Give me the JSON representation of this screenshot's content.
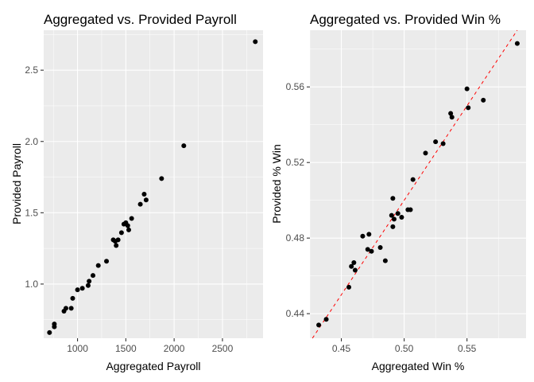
{
  "chart_data": [
    {
      "type": "scatter",
      "title": "Aggregated vs. Provided Payroll",
      "xlabel": "Aggregated Payroll",
      "ylabel": "Provided Payroll",
      "xlim": [
        650,
        2920
      ],
      "ylim": [
        0.62,
        2.78
      ],
      "xticks": [
        1000,
        1500,
        2000,
        2500
      ],
      "xtick_labels": [
        "1000",
        "1500",
        "2000",
        "2500"
      ],
      "yticks": [
        1.0,
        1.5,
        2.0,
        2.5
      ],
      "ytick_labels": [
        "1.0",
        "1.5",
        "2.0",
        "2.5"
      ],
      "grid": true,
      "background": "#ebebeb",
      "point_color": "#000000",
      "points": [
        {
          "x": 710,
          "y": 0.66
        },
        {
          "x": 760,
          "y": 0.7
        },
        {
          "x": 760,
          "y": 0.72
        },
        {
          "x": 860,
          "y": 0.81
        },
        {
          "x": 880,
          "y": 0.83
        },
        {
          "x": 935,
          "y": 0.83
        },
        {
          "x": 950,
          "y": 0.9
        },
        {
          "x": 1000,
          "y": 0.96
        },
        {
          "x": 1050,
          "y": 0.97
        },
        {
          "x": 1110,
          "y": 0.99
        },
        {
          "x": 1120,
          "y": 1.02
        },
        {
          "x": 1160,
          "y": 1.06
        },
        {
          "x": 1215,
          "y": 1.13
        },
        {
          "x": 1300,
          "y": 1.16
        },
        {
          "x": 1370,
          "y": 1.31
        },
        {
          "x": 1390,
          "y": 1.3
        },
        {
          "x": 1400,
          "y": 1.27
        },
        {
          "x": 1420,
          "y": 1.31
        },
        {
          "x": 1455,
          "y": 1.36
        },
        {
          "x": 1480,
          "y": 1.42
        },
        {
          "x": 1500,
          "y": 1.43
        },
        {
          "x": 1520,
          "y": 1.41
        },
        {
          "x": 1530,
          "y": 1.38
        },
        {
          "x": 1560,
          "y": 1.46
        },
        {
          "x": 1650,
          "y": 1.56
        },
        {
          "x": 1690,
          "y": 1.63
        },
        {
          "x": 1710,
          "y": 1.59
        },
        {
          "x": 1870,
          "y": 1.74
        },
        {
          "x": 2100,
          "y": 1.97
        },
        {
          "x": 2840,
          "y": 2.7
        }
      ]
    },
    {
      "type": "scatter",
      "title": "Aggregated vs. Provided Win %",
      "xlabel": "Aggregated Win %",
      "ylabel": "Provided % Win",
      "xlim": [
        0.425,
        0.597
      ],
      "ylim": [
        0.427,
        0.59
      ],
      "xticks": [
        0.45,
        0.5,
        0.55
      ],
      "xtick_labels": [
        "0.45",
        "0.50",
        "0.55"
      ],
      "yticks": [
        0.44,
        0.48,
        0.52,
        0.56
      ],
      "ytick_labels": [
        "0.44",
        "0.48",
        "0.52",
        "0.56"
      ],
      "grid": true,
      "background": "#ebebeb",
      "point_color": "#000000",
      "reference_line": {
        "slope": 1,
        "intercept": 0,
        "style": "dashed",
        "color": "#ff0000"
      },
      "points": [
        {
          "x": 0.432,
          "y": 0.434
        },
        {
          "x": 0.438,
          "y": 0.437
        },
        {
          "x": 0.456,
          "y": 0.454
        },
        {
          "x": 0.458,
          "y": 0.465
        },
        {
          "x": 0.46,
          "y": 0.467
        },
        {
          "x": 0.461,
          "y": 0.463
        },
        {
          "x": 0.467,
          "y": 0.481
        },
        {
          "x": 0.471,
          "y": 0.474
        },
        {
          "x": 0.472,
          "y": 0.482
        },
        {
          "x": 0.474,
          "y": 0.473
        },
        {
          "x": 0.481,
          "y": 0.475
        },
        {
          "x": 0.485,
          "y": 0.468
        },
        {
          "x": 0.49,
          "y": 0.492
        },
        {
          "x": 0.491,
          "y": 0.501
        },
        {
          "x": 0.491,
          "y": 0.486
        },
        {
          "x": 0.492,
          "y": 0.49
        },
        {
          "x": 0.495,
          "y": 0.493
        },
        {
          "x": 0.498,
          "y": 0.491
        },
        {
          "x": 0.503,
          "y": 0.495
        },
        {
          "x": 0.505,
          "y": 0.495
        },
        {
          "x": 0.507,
          "y": 0.511
        },
        {
          "x": 0.517,
          "y": 0.525
        },
        {
          "x": 0.525,
          "y": 0.531
        },
        {
          "x": 0.531,
          "y": 0.53
        },
        {
          "x": 0.537,
          "y": 0.546
        },
        {
          "x": 0.538,
          "y": 0.544
        },
        {
          "x": 0.55,
          "y": 0.559
        },
        {
          "x": 0.551,
          "y": 0.549
        },
        {
          "x": 0.563,
          "y": 0.553
        },
        {
          "x": 0.59,
          "y": 0.583
        }
      ]
    }
  ]
}
